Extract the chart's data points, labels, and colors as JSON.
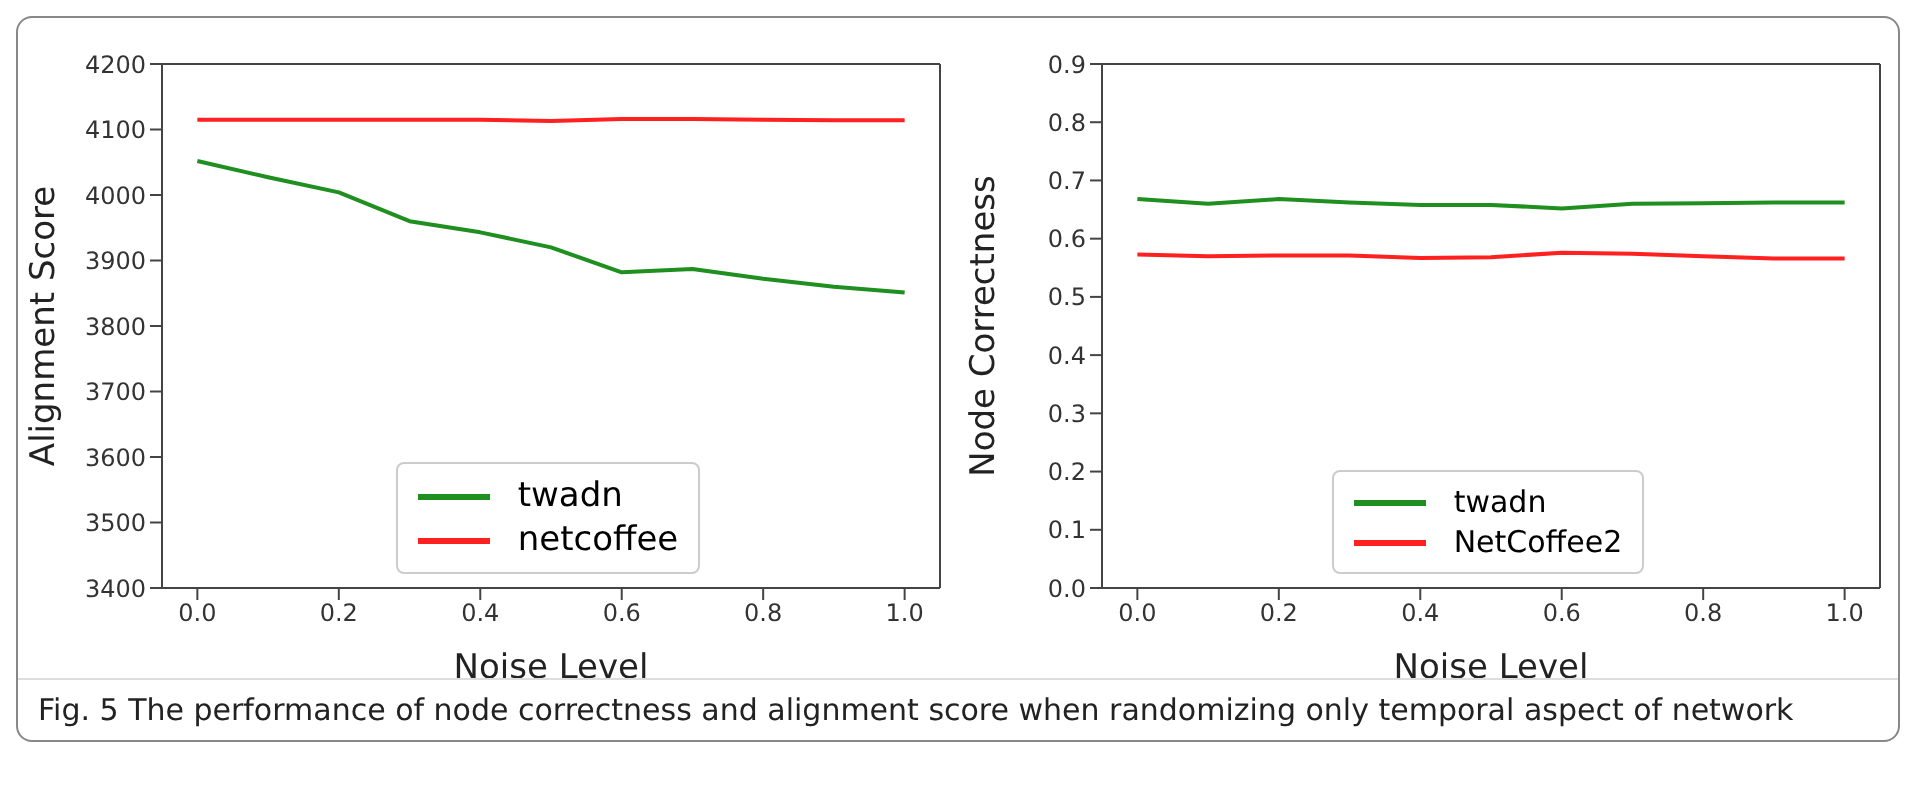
{
  "chart_data": [
    {
      "type": "line",
      "xlabel": "Noise Level",
      "ylabel": "Alignment Score",
      "x": [
        0,
        0.1,
        0.2,
        0.3,
        0.4,
        0.5,
        0.6,
        0.7,
        0.8,
        0.9,
        1.0
      ],
      "series": [
        {
          "name": "twadn",
          "color": "#1f8f1f",
          "values": [
            4052,
            4027,
            4004,
            3960,
            3943,
            3920,
            3882,
            3887,
            3872,
            3860,
            3851
          ]
        },
        {
          "name": "netcoffee",
          "color": "#ff2020",
          "values": [
            4115,
            4115,
            4115,
            4115,
            4115,
            4113,
            4116,
            4116,
            4115,
            4114,
            4114
          ]
        }
      ],
      "xlim": [
        -0.05,
        1.05
      ],
      "xticks": [
        {
          "value": 0,
          "label": "0.0"
        },
        {
          "value": 0.2,
          "label": "0.2"
        },
        {
          "value": 0.4,
          "label": "0.4"
        },
        {
          "value": 0.6,
          "label": "0.6"
        },
        {
          "value": 0.8,
          "label": "0.8"
        },
        {
          "value": 1,
          "label": "1.0"
        }
      ],
      "ylim": [
        3400,
        4200
      ],
      "yticks": [
        3400,
        3500,
        3600,
        3700,
        3800,
        3900,
        4000,
        4100,
        4200
      ],
      "legend": "bottom",
      "grid": false,
      "marker": "none",
      "line_style": "solid",
      "annotations": [
        "Fig. 5  The performance of node correctness and alignment score when randomizing only temporal aspect of network"
      ]
    },
    {
      "type": "line",
      "xlabel": "Noise Level",
      "ylabel": "Node Correctness",
      "x": [
        0,
        0.1,
        0.2,
        0.3,
        0.4,
        0.5,
        0.6,
        0.7,
        0.8,
        0.9,
        1.0
      ],
      "series": [
        {
          "name": "twadn",
          "color": "#1f8f1f",
          "values": [
            0.668,
            0.66,
            0.668,
            0.662,
            0.658,
            0.658,
            0.652,
            0.66,
            0.661,
            0.662,
            0.662
          ]
        },
        {
          "name": "NetCoffee2",
          "color": "#ff2020",
          "values": [
            0.573,
            0.57,
            0.571,
            0.571,
            0.567,
            0.568,
            0.576,
            0.574,
            0.57,
            0.566,
            0.566
          ]
        }
      ],
      "xlim": [
        -0.05,
        1.05
      ],
      "xticks": [
        {
          "value": 0,
          "label": "0.0"
        },
        {
          "value": 0.2,
          "label": "0.2"
        },
        {
          "value": 0.4,
          "label": "0.4"
        },
        {
          "value": 0.6,
          "label": "0.6"
        },
        {
          "value": 0.8,
          "label": "0.8"
        },
        {
          "value": 1,
          "label": "1.0"
        }
      ],
      "ylim": [
        0,
        0.9
      ],
      "yticks": [
        {
          "value": 0,
          "label": "0.0"
        },
        {
          "value": 0.1,
          "label": "0.1"
        },
        {
          "value": 0.2,
          "label": "0.2"
        },
        {
          "value": 0.3,
          "label": "0.3"
        },
        {
          "value": 0.4,
          "label": "0.4"
        },
        {
          "value": 0.5,
          "label": "0.5"
        },
        {
          "value": 0.6,
          "label": "0.6"
        },
        {
          "value": 0.7,
          "label": "0.7"
        },
        {
          "value": 0.8,
          "label": "0.8"
        },
        {
          "value": 0.9,
          "label": "0.9"
        }
      ],
      "legend": "bottom",
      "grid": false,
      "marker": "none",
      "line_style": "solid"
    }
  ]
}
